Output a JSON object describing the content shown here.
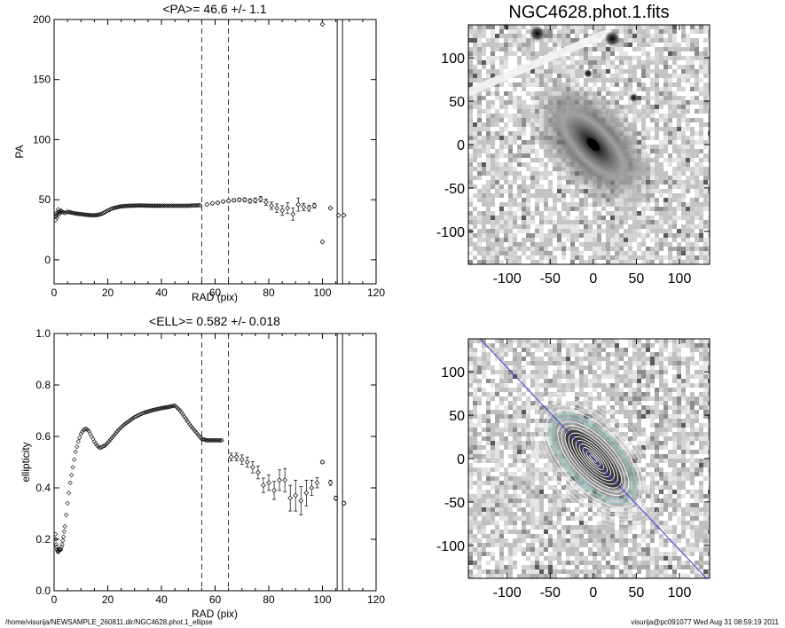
{
  "footer": {
    "left": "/home/visurija/NEWSAMPLE_260811.dir/NGC4628.phot.1_ellipse",
    "right": "visurija@pc091077  Wed Aug 31 08:59:19 2011"
  },
  "chart_data": [
    {
      "type": "scatter",
      "title": "<PA>=  46.6 +/-   1.1",
      "xlabel": "RAD (pix)",
      "ylabel": "PA",
      "xlim": [
        0,
        120
      ],
      "ylim": [
        -20,
        200
      ],
      "xticks": [
        "0",
        "20",
        "40",
        "60",
        "80",
        "100",
        "120"
      ],
      "yticks": [
        "0",
        "50",
        "100",
        "150",
        "200"
      ],
      "xtick_values": [
        0,
        20,
        40,
        60,
        80,
        100,
        120
      ],
      "ytick_values": [
        0,
        50,
        100,
        150,
        200
      ],
      "dashed_vlines": [
        55,
        65
      ],
      "solid_vlines": [
        105.5,
        107.5
      ],
      "dense_curve": {
        "x": [
          0.5,
          0.8,
          1.1,
          1.5,
          2.0,
          2.5,
          3.0,
          4.0,
          5.0,
          6.0,
          7.0,
          8.0,
          10.0,
          12.0,
          14.0,
          16.0,
          18.0,
          20.0,
          22.0,
          25.0,
          28.0,
          32.0,
          36.0,
          40.0,
          45.0,
          50.0,
          55.0
        ],
        "y": [
          33,
          39,
          35,
          42,
          38,
          41,
          40,
          39,
          40,
          39.5,
          39,
          38.5,
          38,
          37.5,
          37,
          37.2,
          38.5,
          41,
          43,
          44.5,
          45,
          45.2,
          45,
          45,
          45,
          45,
          45.5
        ]
      },
      "points": {
        "x": [
          57,
          59,
          61,
          63,
          65,
          67,
          69,
          71,
          73,
          75,
          77,
          79,
          81,
          83,
          85,
          87,
          89,
          91,
          93,
          95,
          97,
          100,
          100,
          103,
          106,
          108
        ],
        "y": [
          46,
          47,
          47.5,
          48.5,
          49,
          49.5,
          50,
          50,
          49,
          49.5,
          50.5,
          48,
          45,
          43,
          41,
          43,
          38,
          46,
          44,
          43,
          45,
          196,
          15,
          43,
          37,
          37
        ],
        "err": [
          0.6,
          0.7,
          0.8,
          0.9,
          1.0,
          1.2,
          1.4,
          1.6,
          1.8,
          2.0,
          2.2,
          2.5,
          3.0,
          3.5,
          4.0,
          4.5,
          5.0,
          5.5,
          3.0,
          2.5,
          2.0,
          0,
          0,
          1.0,
          0.5,
          0.5
        ]
      }
    },
    {
      "type": "scatter",
      "title": "<ELL>= 0.582 +/-  0.018",
      "xlabel": "RAD (pix)",
      "ylabel": "ellipticity",
      "xlim": [
        0,
        120
      ],
      "ylim": [
        0,
        1
      ],
      "xticks": [
        "0",
        "20",
        "40",
        "60",
        "80",
        "100",
        "120"
      ],
      "yticks": [
        "0.0",
        "0.2",
        "0.4",
        "0.6",
        "0.8",
        "1.0"
      ],
      "xtick_values": [
        0,
        20,
        40,
        60,
        80,
        100,
        120
      ],
      "ytick_values": [
        0,
        0.2,
        0.4,
        0.6,
        0.8,
        1.0
      ],
      "dashed_vlines": [
        55,
        65
      ],
      "solid_vlines": [
        105.5,
        107.5
      ],
      "dense_curve": {
        "x": [
          0.5,
          0.8,
          1.1,
          1.5,
          2.0,
          2.5,
          3.0,
          3.5,
          4.0,
          5.0,
          6.0,
          7.0,
          8.0,
          9.0,
          10.0,
          11.0,
          12.0,
          13.0,
          14.0,
          15.0,
          16.0,
          17.0,
          18.0,
          19.0,
          20.0,
          22.0,
          24.0,
          26.0,
          28.0,
          30.0,
          33.0,
          36.0,
          40.0,
          43.0,
          45.0,
          47.0,
          49.0,
          51.0,
          53.0,
          55.0,
          57.0,
          59.0,
          61.0,
          63.0
        ],
        "y": [
          0.22,
          0.18,
          0.16,
          0.15,
          0.16,
          0.16,
          0.18,
          0.21,
          0.25,
          0.34,
          0.42,
          0.48,
          0.54,
          0.58,
          0.61,
          0.625,
          0.63,
          0.62,
          0.6,
          0.58,
          0.565,
          0.555,
          0.56,
          0.565,
          0.575,
          0.6,
          0.625,
          0.645,
          0.66,
          0.675,
          0.69,
          0.7,
          0.71,
          0.715,
          0.72,
          0.7,
          0.67,
          0.64,
          0.615,
          0.59,
          0.585,
          0.585,
          0.585,
          0.585
        ]
      },
      "points": {
        "x": [
          66,
          68,
          70,
          72,
          74,
          76,
          78,
          80,
          82,
          84,
          86,
          88,
          90,
          92,
          94,
          96,
          98,
          100,
          103,
          105,
          108
        ],
        "y": [
          0.52,
          0.52,
          0.51,
          0.5,
          0.48,
          0.46,
          0.41,
          0.42,
          0.39,
          0.43,
          0.43,
          0.36,
          0.37,
          0.35,
          0.38,
          0.4,
          0.42,
          0.5,
          0.42,
          0.36,
          0.34
        ],
        "err": [
          0.015,
          0.015,
          0.018,
          0.02,
          0.022,
          0.025,
          0.028,
          0.03,
          0.035,
          0.04,
          0.045,
          0.05,
          0.06,
          0.055,
          0.05,
          0.03,
          0.02,
          0.005,
          0.01,
          0.008,
          0.006
        ]
      }
    },
    {
      "type": "heatmap",
      "title": "NGC4628.phot.1.fits",
      "xlim": [
        -145,
        135
      ],
      "ylim": [
        -138,
        138
      ],
      "xticks": [
        "-100",
        "-50",
        "0",
        "50",
        "100"
      ],
      "yticks": [
        "100",
        "50",
        "0",
        "-50",
        "-100"
      ],
      "xtick_values": [
        -100,
        -50,
        0,
        50,
        100
      ],
      "ytick_values": [
        100,
        50,
        0,
        -50,
        -100
      ],
      "galaxy": {
        "center": [
          0,
          0
        ],
        "position_angle_deg": 46.6,
        "ellipticity": 0.58
      },
      "bright_sources": [
        [
          -65,
          128
        ],
        [
          22,
          122
        ],
        [
          47,
          54
        ],
        [
          -6,
          82
        ]
      ]
    },
    {
      "type": "heatmap",
      "xlim": [
        -145,
        135
      ],
      "ylim": [
        -138,
        138
      ],
      "xticks": [
        "-100",
        "-50",
        "0",
        "50",
        "100"
      ],
      "yticks": [
        "100",
        "50",
        "0",
        "-50",
        "-100"
      ],
      "xtick_values": [
        -100,
        -50,
        0,
        50,
        100
      ],
      "ytick_values": [
        100,
        50,
        0,
        -50,
        -100
      ],
      "contour_color": "#ffffff",
      "highlight_contour_color": "#7fd4c8",
      "major_axis_color": "#3b3bd6",
      "major_axis_angle_deg": 46.6
    }
  ]
}
